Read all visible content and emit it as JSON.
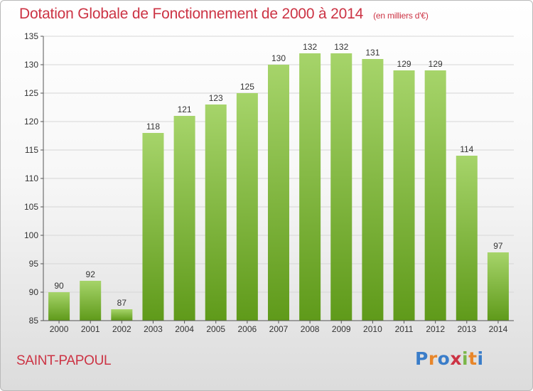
{
  "title": "Dotation Globale de Fonctionnement de 2000 à 2014",
  "unit": "(en milliers d'€)",
  "city": "SAINT-PAPOUL",
  "logo": {
    "text": "Proxiti",
    "letter_colors": [
      "#3a7dc9",
      "#e8862a",
      "#3a7dc9",
      "#cc3344",
      "#7ab648",
      "#e8862a",
      "#3a7dc9"
    ]
  },
  "colors": {
    "title": "#cc3344",
    "bar_top": "#a6d46a",
    "bar_bottom": "#5f9a1a"
  },
  "chart_data": {
    "type": "bar",
    "title": "Dotation Globale de Fonctionnement de 2000 à 2014",
    "subtitle": "(en milliers d'€)",
    "xlabel": "",
    "ylabel": "",
    "ylim": [
      85,
      135
    ],
    "yticks": [
      85,
      90,
      95,
      100,
      105,
      110,
      115,
      120,
      125,
      130,
      135
    ],
    "grid": true,
    "categories": [
      "2000",
      "2001",
      "2002",
      "2003",
      "2004",
      "2005",
      "2006",
      "2007",
      "2008",
      "2009",
      "2010",
      "2011",
      "2012",
      "2013",
      "2014"
    ],
    "values": [
      90,
      92,
      87,
      118,
      121,
      123,
      125,
      130,
      132,
      132,
      131,
      129,
      129,
      114,
      97
    ]
  }
}
